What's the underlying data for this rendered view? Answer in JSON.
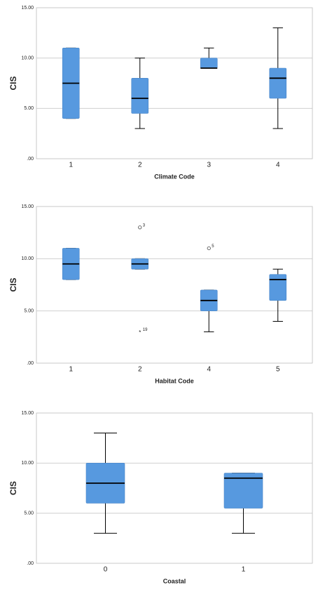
{
  "chart_data": [
    {
      "type": "box",
      "x_label": "Climate Code",
      "y_label": "CIS",
      "color": "#5799df",
      "categories": [
        "1",
        "2",
        "3",
        "4"
      ],
      "boxes": [
        {
          "min": 4,
          "q1": 4,
          "median": 7.5,
          "q3": 11,
          "max": 11
        },
        {
          "min": 3,
          "q1": 4.5,
          "median": 6,
          "q3": 8,
          "max": 10
        },
        {
          "min": 9,
          "q1": 9,
          "median": 9,
          "q3": 10,
          "max": 11
        },
        {
          "min": 3,
          "q1": 6,
          "median": 8,
          "q3": 9,
          "max": 13
        }
      ],
      "outliers": [],
      "ylim": [
        0,
        15
      ],
      "yticks": [
        {
          "value": 0,
          "label": ".00"
        },
        {
          "value": 5,
          "label": "5.00"
        },
        {
          "value": 10,
          "label": "10.00"
        },
        {
          "value": 15,
          "label": "15.00"
        }
      ],
      "grid": true
    },
    {
      "type": "box",
      "x_label": "Habitat Code",
      "y_label": "CIS",
      "color": "#5799df",
      "categories": [
        "1",
        "2",
        "4",
        "5"
      ],
      "boxes": [
        {
          "min": 8,
          "q1": 8,
          "median": 9.5,
          "q3": 11,
          "max": 11
        },
        {
          "min": 9,
          "q1": 9,
          "median": 9.5,
          "q3": 10,
          "max": 10
        },
        {
          "min": 3,
          "q1": 5,
          "median": 6,
          "q3": 7,
          "max": 7
        },
        {
          "min": 4,
          "q1": 6,
          "median": 8,
          "q3": 8.5,
          "max": 9
        }
      ],
      "outliers": [
        {
          "category": "2",
          "value": 13,
          "label": "3",
          "shape": "circle"
        },
        {
          "category": "2",
          "value": 3,
          "label": "19",
          "shape": "star"
        },
        {
          "category": "4",
          "value": 11,
          "label": "5",
          "shape": "circle"
        }
      ],
      "ylim": [
        0,
        15
      ],
      "yticks": [
        {
          "value": 0,
          "label": ".00"
        },
        {
          "value": 5,
          "label": "5.00"
        },
        {
          "value": 10,
          "label": "10.00"
        },
        {
          "value": 15,
          "label": "15.00"
        }
      ],
      "grid": true
    },
    {
      "type": "box",
      "x_label": "Coastal",
      "y_label": "CIS",
      "color": "#5799df",
      "categories": [
        "0",
        "1"
      ],
      "boxes": [
        {
          "min": 3,
          "q1": 6,
          "median": 8,
          "q3": 10,
          "max": 13
        },
        {
          "min": 3,
          "q1": 5.5,
          "median": 8.5,
          "q3": 9,
          "max": 9
        }
      ],
      "outliers": [],
      "ylim": [
        0,
        15
      ],
      "yticks": [
        {
          "value": 0,
          "label": ".00"
        },
        {
          "value": 5,
          "label": "5.00"
        },
        {
          "value": 10,
          "label": "10.00"
        },
        {
          "value": 15,
          "label": "15.00"
        }
      ],
      "grid": true
    }
  ]
}
